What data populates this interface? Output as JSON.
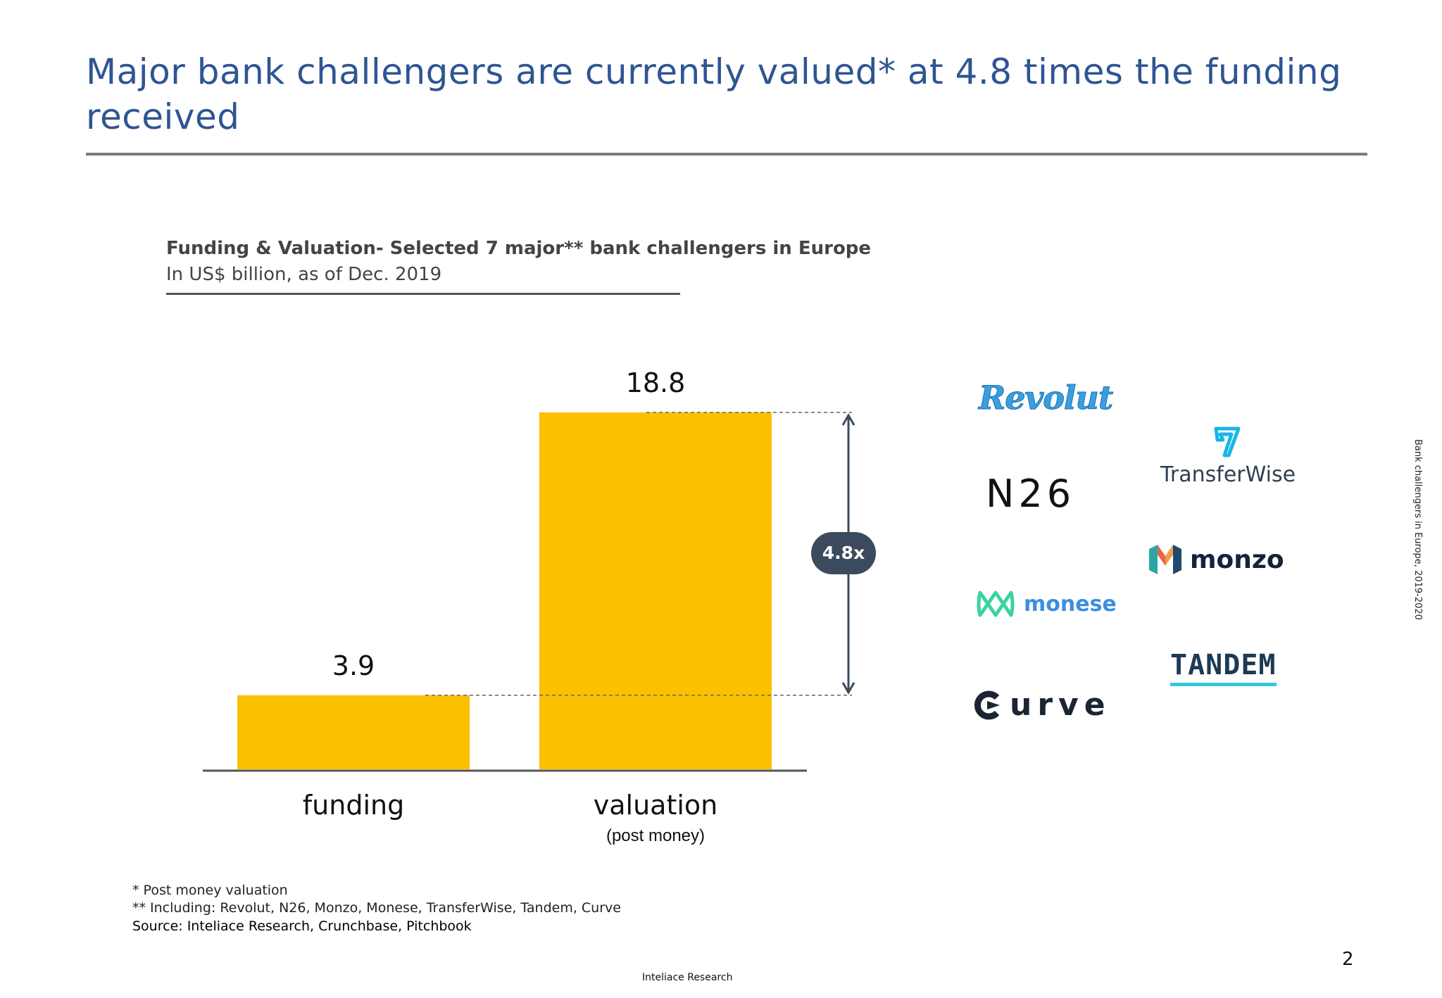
{
  "slide": {
    "title": "Major bank challengers are currently valued* at 4.8 times the funding received",
    "page_number": "2",
    "footer": "Inteliace Research",
    "side_note": "Bank challengers in Europe, 2019-2020"
  },
  "chart_heading": "Funding & Valuation- Selected 7 major** bank challengers in Europe",
  "chart_subheading": "In US$ billion, as of Dec. 2019",
  "chart_data": {
    "type": "bar",
    "title": "Funding & Valuation- Selected 7 major** bank challengers in Europe",
    "subtitle": "In US$ billion, as of Dec. 2019",
    "categories": [
      "funding",
      "valuation"
    ],
    "category_sublabels": [
      "",
      "(post money)"
    ],
    "values": [
      3.9,
      18.8
    ],
    "value_labels": [
      "3.9",
      "18.8"
    ],
    "ylim": [
      0,
      18.8
    ],
    "grid": false,
    "legend": "none",
    "bar_color": "#fbc000",
    "annotation": {
      "from": "funding",
      "to": "valuation",
      "label": "4.8x"
    }
  },
  "logos": {
    "revolut": "Revolut",
    "n26": "N26",
    "transferwise": "TransferWise",
    "monzo": "monzo",
    "monese": "monese",
    "tandem": "TANDEM",
    "curve": "urve"
  },
  "colors": {
    "title": "#2e5593",
    "bar": "#fbc000",
    "badge": "#3c4a5e",
    "axis": "#555555"
  },
  "footnotes": {
    "note1": "* Post money valuation",
    "note2": "** Including: Revolut, N26, Monzo, Monese, TransferWise, Tandem, Curve",
    "source": "Source: Inteliace Research, Crunchbase, Pitchbook"
  }
}
